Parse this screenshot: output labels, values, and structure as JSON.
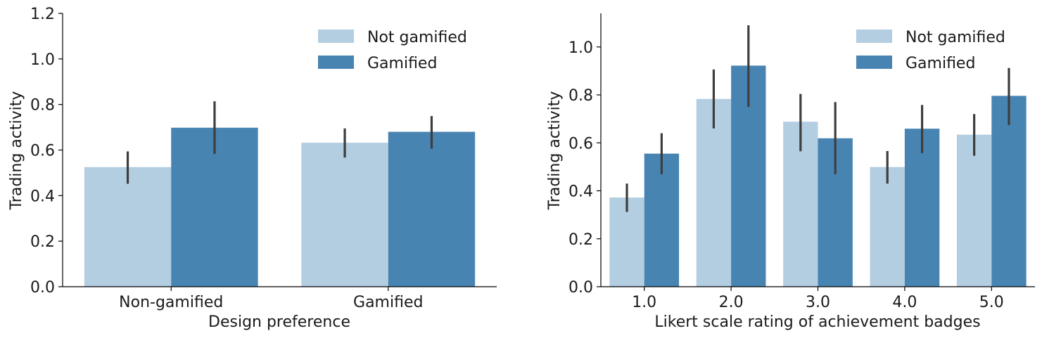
{
  "chart_data": [
    {
      "type": "bar",
      "xlabel": "Design preference",
      "ylabel": "Trading activity",
      "categories": [
        "Non-gamified",
        "Gamified"
      ],
      "ylim": [
        0,
        1.2
      ],
      "yticks": [
        "0.0",
        "0.2",
        "0.4",
        "0.6",
        "0.8",
        "1.0",
        "1.2"
      ],
      "series": [
        {
          "name": "Not gamified",
          "color": "#b3cde1",
          "values": [
            0.525,
            0.632
          ],
          "err_low": [
            0.452,
            0.567
          ],
          "err_high": [
            0.594,
            0.695
          ]
        },
        {
          "name": "Gamified",
          "color": "#4884b2",
          "values": [
            0.698,
            0.68
          ],
          "err_low": [
            0.583,
            0.606
          ],
          "err_high": [
            0.814,
            0.749
          ]
        }
      ],
      "error_bars": true,
      "legend": "top-right",
      "grid": false
    },
    {
      "type": "bar",
      "xlabel": "Likert scale rating of achievement badges",
      "ylabel": "Trading activity",
      "categories": [
        "1.0",
        "2.0",
        "3.0",
        "4.0",
        "5.0"
      ],
      "ylim": [
        0,
        1.14
      ],
      "yticks": [
        "0.0",
        "0.2",
        "0.4",
        "0.6",
        "0.8",
        "1.0"
      ],
      "series": [
        {
          "name": "Not gamified",
          "color": "#b3cde1",
          "values": [
            0.372,
            0.783,
            0.688,
            0.499,
            0.634
          ],
          "err_low": [
            0.312,
            0.66,
            0.565,
            0.43,
            0.546
          ],
          "err_high": [
            0.43,
            0.906,
            0.804,
            0.566,
            0.72
          ]
        },
        {
          "name": "Gamified",
          "color": "#4884b2",
          "values": [
            0.555,
            0.922,
            0.619,
            0.659,
            0.796
          ],
          "err_low": [
            0.469,
            0.75,
            0.469,
            0.557,
            0.674
          ],
          "err_high": [
            0.64,
            1.09,
            0.77,
            0.758,
            0.912
          ]
        }
      ],
      "error_bars": true,
      "legend": "top-right",
      "grid": false
    }
  ]
}
